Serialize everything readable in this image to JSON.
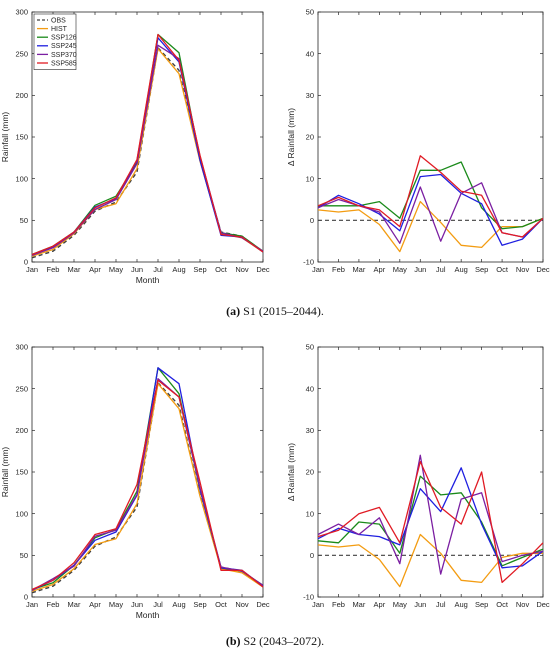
{
  "captions": {
    "a_letter": "(a)",
    "a_text": " S1 (2015–2044).",
    "b_letter": "(b)",
    "b_text": " S2 (2043–2072)."
  },
  "series_styles": [
    {
      "name": "OBS",
      "color": "#404040",
      "dash": true
    },
    {
      "name": "HIST",
      "color": "#F39C12"
    },
    {
      "name": "SSP126",
      "color": "#1A8A1A"
    },
    {
      "name": "SSP245",
      "color": "#1F1FE0"
    },
    {
      "name": "SSP370",
      "color": "#7B1FA2"
    },
    {
      "name": "SSP585",
      "color": "#E01B24"
    }
  ],
  "chart_data": [
    {
      "id": "a-left",
      "type": "line",
      "xlabel": "Month",
      "ylabel": "Rainfall (mm)",
      "categories": [
        "Jan",
        "Feb",
        "Mar",
        "Apr",
        "May",
        "Jun",
        "Jul",
        "Aug",
        "Sep",
        "Oct",
        "Nov",
        "Dec"
      ],
      "ylim": [
        0,
        300
      ],
      "yticks": [
        0,
        50,
        100,
        150,
        200,
        250,
        300
      ],
      "legend": "top-left",
      "series": [
        {
          "name": "OBS",
          "values": [
            5,
            13,
            32,
            61,
            72,
            108,
            257,
            230,
            122,
            36,
            31,
            12
          ]
        },
        {
          "name": "HIST",
          "values": [
            7,
            15,
            34,
            63,
            70,
            112,
            256,
            226,
            121,
            34,
            29,
            12
          ]
        },
        {
          "name": "SSP126",
          "values": [
            9,
            19,
            36,
            68,
            79,
            119,
            273,
            251,
            124,
            35,
            31,
            13
          ]
        },
        {
          "name": "SSP245",
          "values": [
            8,
            18,
            36,
            66,
            76,
            122,
            269,
            240,
            122,
            32,
            30,
            12
          ]
        },
        {
          "name": "SSP370",
          "values": [
            8,
            17,
            35,
            63,
            75,
            118,
            260,
            244,
            127,
            35,
            29,
            13
          ]
        },
        {
          "name": "SSP585",
          "values": [
            9,
            19,
            36,
            65,
            77,
            123,
            273,
            242,
            128,
            33,
            30,
            12
          ]
        }
      ]
    },
    {
      "id": "a-right",
      "type": "line",
      "xlabel": "",
      "ylabel": "Δ Rainfall (mm)",
      "categories": [
        "Jan",
        "Feb",
        "Mar",
        "Apr",
        "May",
        "Jun",
        "Jul",
        "Aug",
        "Sep",
        "Oct",
        "Nov",
        "Dec"
      ],
      "ylim": [
        -10,
        50
      ],
      "yticks": [
        -10,
        0,
        10,
        20,
        30,
        40,
        50
      ],
      "reference_line": 0,
      "series": [
        {
          "name": "HIST",
          "values": [
            2.5,
            2.0,
            2.5,
            -1.0,
            -7.5,
            4.5,
            -0.5,
            -6.0,
            -6.5,
            -1.5,
            -1.5,
            0.5
          ]
        },
        {
          "name": "SSP126",
          "values": [
            3.5,
            3.5,
            3.5,
            4.5,
            0.5,
            12.0,
            12.0,
            14.0,
            3.0,
            -2.0,
            -1.5,
            0.5
          ]
        },
        {
          "name": "SSP245",
          "values": [
            3.0,
            6.0,
            4.0,
            1.5,
            -2.5,
            10.5,
            11.0,
            6.5,
            4.0,
            -6.0,
            -4.5,
            0.5
          ]
        },
        {
          "name": "SSP370",
          "values": [
            3.0,
            5.0,
            3.5,
            2.0,
            -5.5,
            8.0,
            -5.0,
            6.5,
            9.0,
            -3.0,
            -4.0,
            0.5
          ]
        },
        {
          "name": "SSP585",
          "values": [
            3.5,
            5.5,
            3.5,
            2.5,
            -1.5,
            15.5,
            11.5,
            7.0,
            6.0,
            -3.0,
            -4.0,
            0.5
          ]
        }
      ]
    },
    {
      "id": "b-left",
      "type": "line",
      "xlabel": "Month",
      "ylabel": "Rainfall (mm)",
      "categories": [
        "Jan",
        "Feb",
        "Mar",
        "Apr",
        "May",
        "Jun",
        "Jul",
        "Aug",
        "Sep",
        "Oct",
        "Nov",
        "Dec"
      ],
      "ylim": [
        0,
        300
      ],
      "yticks": [
        0,
        50,
        100,
        150,
        200,
        250,
        300
      ],
      "series": [
        {
          "name": "OBS",
          "values": [
            5,
            13,
            32,
            61,
            72,
            108,
            257,
            230,
            122,
            36,
            31,
            12
          ]
        },
        {
          "name": "HIST",
          "values": [
            7,
            15,
            34,
            63,
            70,
            112,
            256,
            226,
            121,
            34,
            29,
            12
          ]
        },
        {
          "name": "SSP126",
          "values": [
            9,
            17,
            38,
            71,
            81,
            127,
            275,
            244,
            129,
            35,
            31,
            14
          ]
        },
        {
          "name": "SSP245",
          "values": [
            8,
            20,
            38,
            68,
            78,
            122,
            275,
            256,
            129,
            35,
            32,
            13
          ]
        },
        {
          "name": "SSP370",
          "values": [
            8,
            22,
            37,
            73,
            80,
            123,
            262,
            240,
            131,
            36,
            31,
            14
          ]
        },
        {
          "name": "SSP585",
          "values": [
            9,
            20,
            41,
            75,
            82,
            135,
            260,
            240,
            138,
            32,
            32,
            12
          ]
        }
      ]
    },
    {
      "id": "b-right",
      "type": "line",
      "xlabel": "",
      "ylabel": "Δ Rainfall (mm)",
      "categories": [
        "Jan",
        "Feb",
        "Mar",
        "Apr",
        "May",
        "Jun",
        "Jul",
        "Aug",
        "Sep",
        "Oct",
        "Nov",
        "Dec"
      ],
      "ylim": [
        -10,
        50
      ],
      "yticks": [
        -10,
        0,
        10,
        20,
        30,
        40,
        50
      ],
      "reference_line": 0,
      "series": [
        {
          "name": "HIST",
          "values": [
            2.5,
            2.0,
            2.5,
            -1.0,
            -7.5,
            5.0,
            0.5,
            -6.0,
            -6.5,
            -0.5,
            0.5,
            0.5
          ]
        },
        {
          "name": "SSP126",
          "values": [
            3.5,
            3.0,
            8.0,
            7.5,
            0.5,
            19.0,
            14.5,
            15.0,
            8.0,
            -2.5,
            -0.5,
            1.5
          ]
        },
        {
          "name": "SSP245",
          "values": [
            4.0,
            6.5,
            5.0,
            4.5,
            2.5,
            16.0,
            10.5,
            21.0,
            7.5,
            -3.0,
            -2.5,
            1.0
          ]
        },
        {
          "name": "SSP370",
          "values": [
            5.0,
            7.5,
            5.0,
            9.0,
            -2.0,
            24.0,
            -4.5,
            13.5,
            15.0,
            -1.5,
            0.0,
            1.0
          ]
        },
        {
          "name": "SSP585",
          "values": [
            4.5,
            6.0,
            10.0,
            11.5,
            3.0,
            22.5,
            11.5,
            7.5,
            20.0,
            -6.5,
            -2.0,
            3.0
          ]
        }
      ]
    }
  ]
}
